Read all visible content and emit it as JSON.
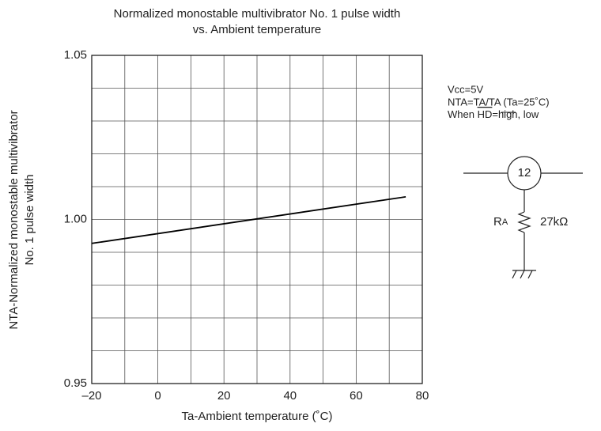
{
  "chart_data": {
    "type": "line",
    "title": [
      "Normalized monostable multivibrator No. 1 pulse width",
      "vs. Ambient temperature"
    ],
    "x_label": "Ta-Ambient temperature (˚C)",
    "y_label": [
      "NTA-Normalized monostable multivibrator",
      "No. 1 pulse width"
    ],
    "xlim": [
      -20,
      80
    ],
    "xticks": [
      {
        "value": -20,
        "label": "–20"
      },
      0,
      20,
      40,
      60,
      80
    ],
    "xgrid": [
      -20,
      -10,
      0,
      10,
      20,
      30,
      40,
      50,
      60,
      70,
      80
    ],
    "ylim": [
      0.95,
      1.05
    ],
    "yticks": [
      0.95,
      {
        "value": 1,
        "label": "1.00"
      },
      1.05
    ],
    "ygrid": [
      0.95,
      0.96,
      0.97,
      0.98,
      0.99,
      1,
      1.01,
      1.02,
      1.03,
      1.04,
      1.05
    ],
    "grid": true,
    "series": [
      {
        "color": "#000000",
        "x": [
          -20,
          75
        ],
        "values": [
          0.9927,
          1.0069
        ]
      }
    ],
    "annotations": {
      "conditions": [
        "Vcc=5V",
        "NTA=TA/TA (Ta=25˚C)"
      ],
      "when": [
        "When ",
        "HD",
        "=high, low"
      ],
      "pin": "12",
      "resistor": [
        "R",
        "A"
      ],
      "resistor_value": "27kΩ"
    }
  }
}
